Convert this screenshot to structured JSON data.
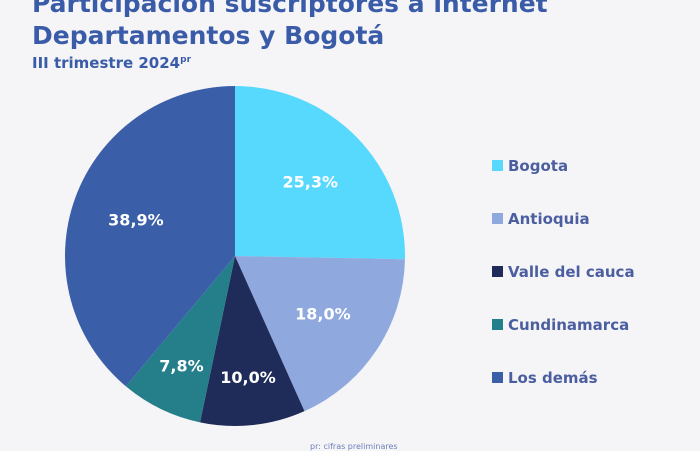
{
  "header": {
    "title_line1": "Participación suscriptores a internet",
    "title_line2": "Departamentos y  Bogotá",
    "subtitle": "III trimestre 2024",
    "subtitle_sup": "pr"
  },
  "chart_data": {
    "type": "pie",
    "categories": [
      "Bogota",
      "Antioquia",
      "Valle del cauca",
      "Cundinamarca",
      "Los demás"
    ],
    "values": [
      25.3,
      18.0,
      10.0,
      7.8,
      38.9
    ],
    "labels": [
      "25,3%",
      "18,0%",
      "10,0%",
      "7,8%",
      "38,9%"
    ],
    "colors": [
      "#57d8fd",
      "#8fa9de",
      "#1f2c5a",
      "#247f8a",
      "#3a5fa8"
    ],
    "label_colors": [
      "#ffffff",
      "#ffffff",
      "#ffffff",
      "#ffffff",
      "#ffffff"
    ],
    "legend_position": "right",
    "start_angle_deg": 0
  },
  "legend": {
    "items": [
      {
        "label": "Bogota",
        "color": "#57d8fd"
      },
      {
        "label": "Antioquia",
        "color": "#8fa9de"
      },
      {
        "label": "Valle del cauca",
        "color": "#1f2c5a"
      },
      {
        "label": "Cundinamarca",
        "color": "#247f8a"
      },
      {
        "label": "Los demás",
        "color": "#3a5fa8"
      }
    ]
  },
  "footnote": "pr: cifras preliminares"
}
